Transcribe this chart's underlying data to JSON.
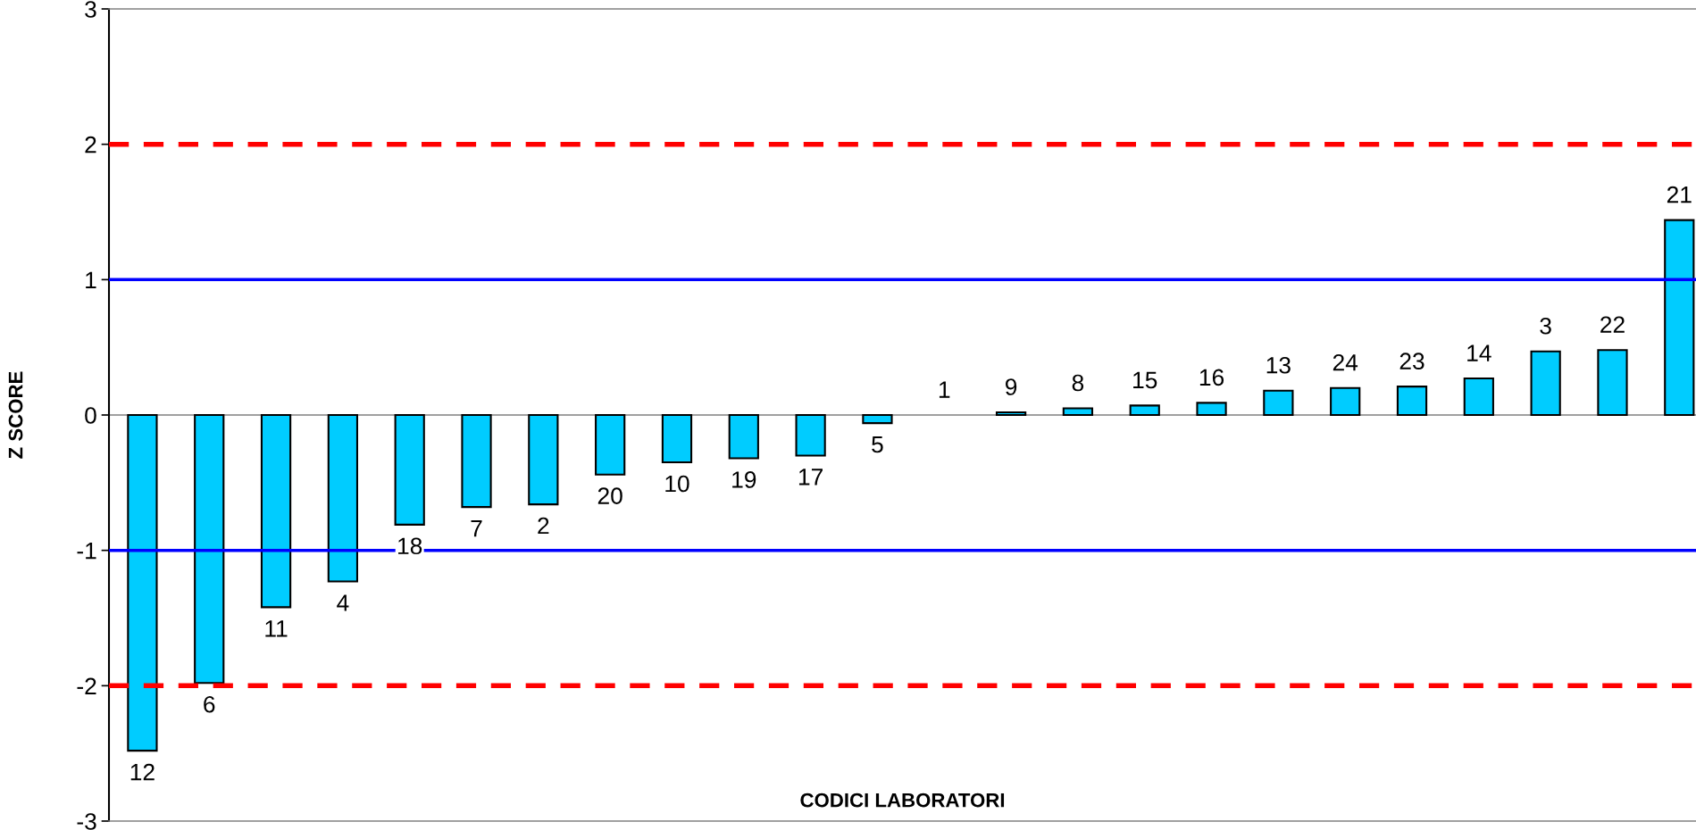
{
  "chart_data": {
    "type": "bar",
    "xlabel": "CODICI LABORATORI",
    "ylabel": "Z SCORE",
    "categories": [
      "12",
      "6",
      "11",
      "4",
      "18",
      "7",
      "2",
      "20",
      "10",
      "19",
      "17",
      "5",
      "1",
      "9",
      "8",
      "15",
      "16",
      "13",
      "24",
      "23",
      "14",
      "3",
      "22",
      "21"
    ],
    "values": [
      -2.48,
      -1.98,
      -1.42,
      -1.23,
      -0.81,
      -0.68,
      -0.66,
      -0.44,
      -0.35,
      -0.32,
      -0.3,
      -0.06,
      0,
      0.02,
      0.05,
      0.07,
      0.09,
      0.18,
      0.2,
      0.21,
      0.27,
      0.47,
      0.48,
      1.44
    ],
    "color": "#00ccff",
    "ylim": [
      -3,
      3
    ],
    "yticks": [
      -3,
      -2,
      -1,
      0,
      1,
      2,
      3
    ],
    "grid": false,
    "ref_lines": [
      {
        "axis": "y",
        "value": 2,
        "color": "#ff0000",
        "line_style": "dashed"
      },
      {
        "axis": "y",
        "value": -2,
        "color": "#ff0000",
        "line_style": "dashed"
      },
      {
        "axis": "y",
        "value": 1,
        "color": "#0000ff",
        "line_style": "solid"
      },
      {
        "axis": "y",
        "value": -1,
        "color": "#0000ff",
        "line_style": "solid"
      }
    ]
  }
}
